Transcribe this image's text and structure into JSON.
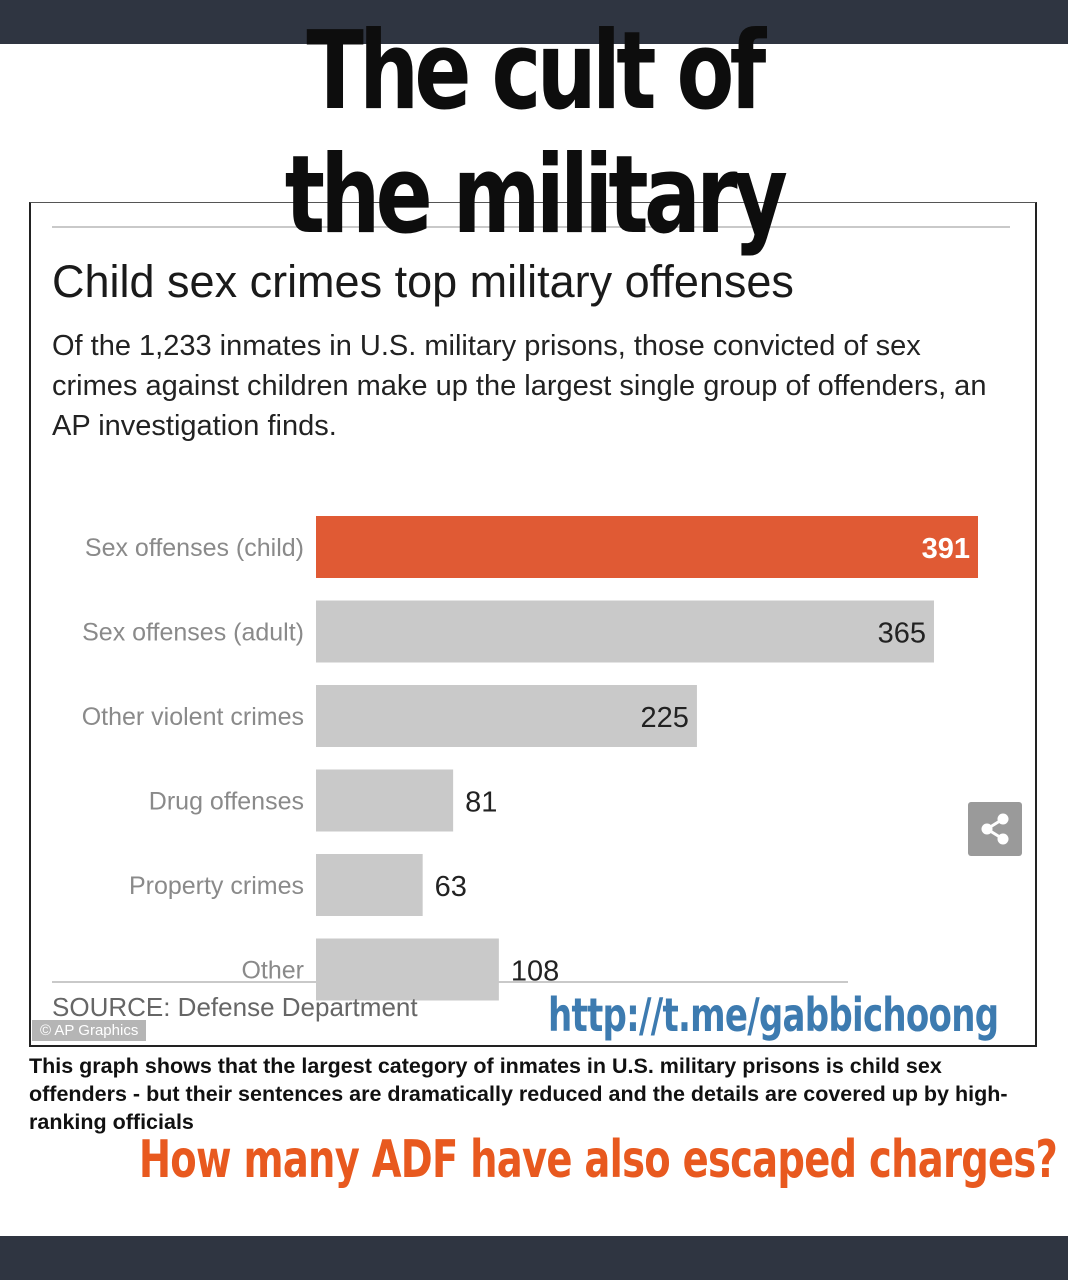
{
  "meme": {
    "title_line1": "The cult of",
    "title_line2": "the military",
    "link": "http://t.me/gabbichoong",
    "caption": "This graph shows that the largest category of inmates in U.S. military prisons is child sex offenders - but their sentences are dramatically reduced and the details are covered up by high-ranking officials",
    "bottom_banner": "How many ADF have also escaped charges?"
  },
  "chart_data": {
    "type": "bar",
    "orientation": "horizontal",
    "title": "Child sex crimes top military offenses",
    "subtitle": "Of the 1,233 inmates in U.S. military prisons, those convicted of sex crimes against children make up the largest single group of offenders, an AP investigation finds.",
    "categories": [
      "Sex offenses (child)",
      "Sex offenses (adult)",
      "Other violent crimes",
      "Drug offenses",
      "Property crimes",
      "Other"
    ],
    "values": [
      391,
      365,
      225,
      81,
      63,
      108
    ],
    "highlight_index": 0,
    "colors": {
      "highlight": "#e05a34",
      "default": "#c9c9c9",
      "label_inside": "#ffffff",
      "label_outside": "#222222"
    },
    "xlim": [
      0,
      391
    ],
    "grid": false,
    "source": "SOURCE: Defense Department",
    "credit": "© AP Graphics"
  },
  "icons": {
    "share": "share-icon"
  }
}
